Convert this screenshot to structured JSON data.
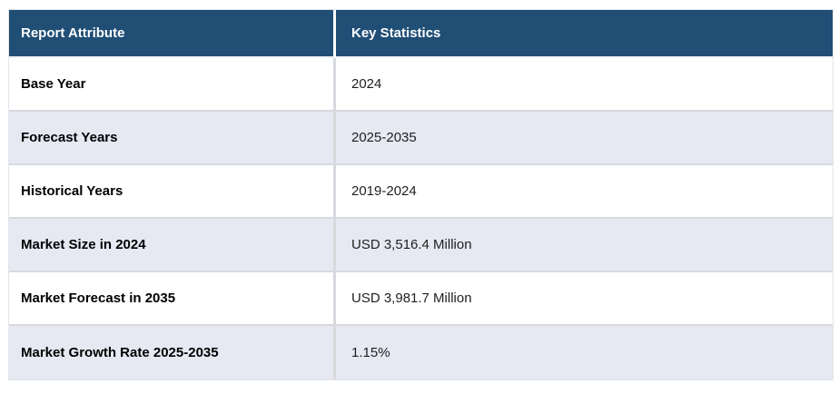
{
  "chart_data": {
    "type": "table",
    "title": "Report Attribute / Key Statistics summary table",
    "columns": [
      "Report Attribute",
      "Key Statistics"
    ],
    "rows": [
      [
        "Base Year",
        "2024"
      ],
      [
        "Forecast Years",
        "2025-2035"
      ],
      [
        "Historical Years",
        "2019-2024"
      ],
      [
        "Market Size in 2024",
        "USD 3,516.4 Million"
      ],
      [
        "Market Forecast in 2035",
        "USD 3,981.7 Million"
      ],
      [
        "Market Growth Rate 2025-2035",
        "1.15%"
      ]
    ],
    "layout_hints": {
      "header_position": "top",
      "striped_rows": true,
      "stripe_pattern": "odd rows white, even rows lavender"
    }
  },
  "colors": {
    "header_bg": "#204E75",
    "header_text": "#FFFFFF",
    "row_bg": "#FFFFFF",
    "row_alt_bg": "#E6E8F2",
    "row_border": "#D8D9DE",
    "attr_text": "#000000",
    "value_text": "#1F1F1F"
  }
}
